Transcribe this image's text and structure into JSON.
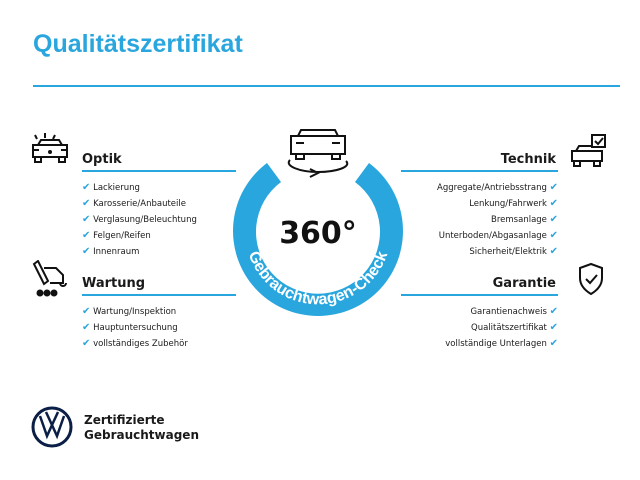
{
  "title": "Qualitätszertifikat",
  "accent": "#2aa6de",
  "center": {
    "value": "360°",
    "ring_text": "Gebrauchtwagen-Check",
    "icon": "car-rotate-icon"
  },
  "optik": {
    "title": "Optik",
    "icon": "car-lights-icon",
    "items": [
      "Lackierung",
      "Karosserie/Anbauteile",
      "Verglasung/Beleuchtung",
      "Felgen/Reifen",
      "Innenraum"
    ]
  },
  "wartung": {
    "title": "Wartung",
    "icon": "service-van-icon",
    "items": [
      "Wartung/Inspektion",
      "Hauptuntersuchung",
      "vollständiges Zubehör"
    ]
  },
  "technik": {
    "title": "Technik",
    "icon": "car-check-icon",
    "items": [
      "Aggregate/Antriebsstrang",
      "Lenkung/Fahrwerk",
      "Bremsanlage",
      "Unterboden/Abgasanlage",
      "Sicherheit/Elektrik"
    ]
  },
  "garantie": {
    "title": "Garantie",
    "icon": "shield-check-icon",
    "items": [
      "Garantienachweis",
      "Qualitätszertifikat",
      "vollständige Unterlagen"
    ]
  },
  "check": "✔",
  "brand": {
    "line1": "Zertifizierte",
    "line2": "Gebrauchtwagen",
    "logo": "vw-logo"
  }
}
